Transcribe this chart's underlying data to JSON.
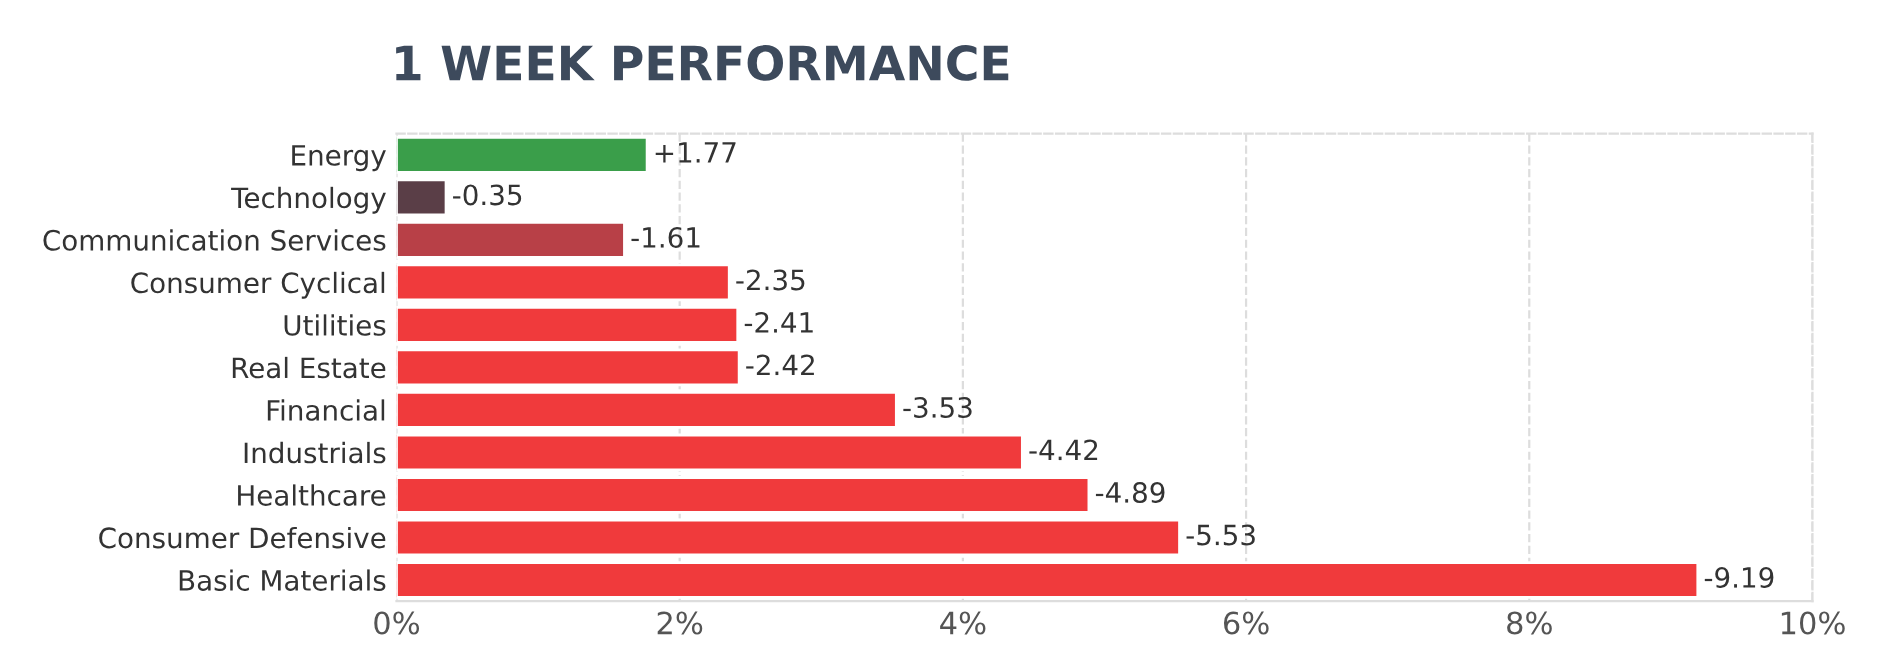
{
  "chart_data": {
    "type": "bar",
    "orientation": "horizontal",
    "title": "1 WEEK PERFORMANCE",
    "categories": [
      "Energy",
      "Technology",
      "Communication Services",
      "Consumer Cyclical",
      "Utilities",
      "Real Estate",
      "Financial",
      "Industrials",
      "Healthcare",
      "Consumer Defensive",
      "Basic Materials"
    ],
    "values": [
      1.77,
      -0.35,
      -1.61,
      -2.35,
      -2.41,
      -2.42,
      -3.53,
      -4.42,
      -4.89,
      -5.53,
      -9.19
    ],
    "base": [
      0,
      0.35,
      1.61,
      2.35,
      2.41,
      2.42,
      3.53,
      4.42,
      4.89,
      5.53,
      9.19
    ],
    "value_labels": [
      "+1.77",
      "-0.35",
      "-1.61",
      "-2.35",
      "-2.41",
      "-2.42",
      "-3.53",
      "-4.42",
      "-4.89",
      "-5.53",
      "-9.19"
    ],
    "colors": [
      "#3a9e4a",
      "#5a3e47",
      "#b84047",
      "#f03a3c",
      "#f03a3c",
      "#f03a3c",
      "#f03a3c",
      "#f03a3c",
      "#f03a3c",
      "#f03a3c",
      "#f03a3c"
    ],
    "xlim": [
      0,
      10
    ],
    "xticks": [
      {
        "value": 0,
        "label": "0%"
      },
      {
        "value": 2,
        "label": "2%"
      },
      {
        "value": 4,
        "label": "4%"
      },
      {
        "value": 6,
        "label": "6%"
      },
      {
        "value": 8,
        "label": "8%"
      },
      {
        "value": 10,
        "label": "10%"
      }
    ],
    "grid": "x"
  }
}
